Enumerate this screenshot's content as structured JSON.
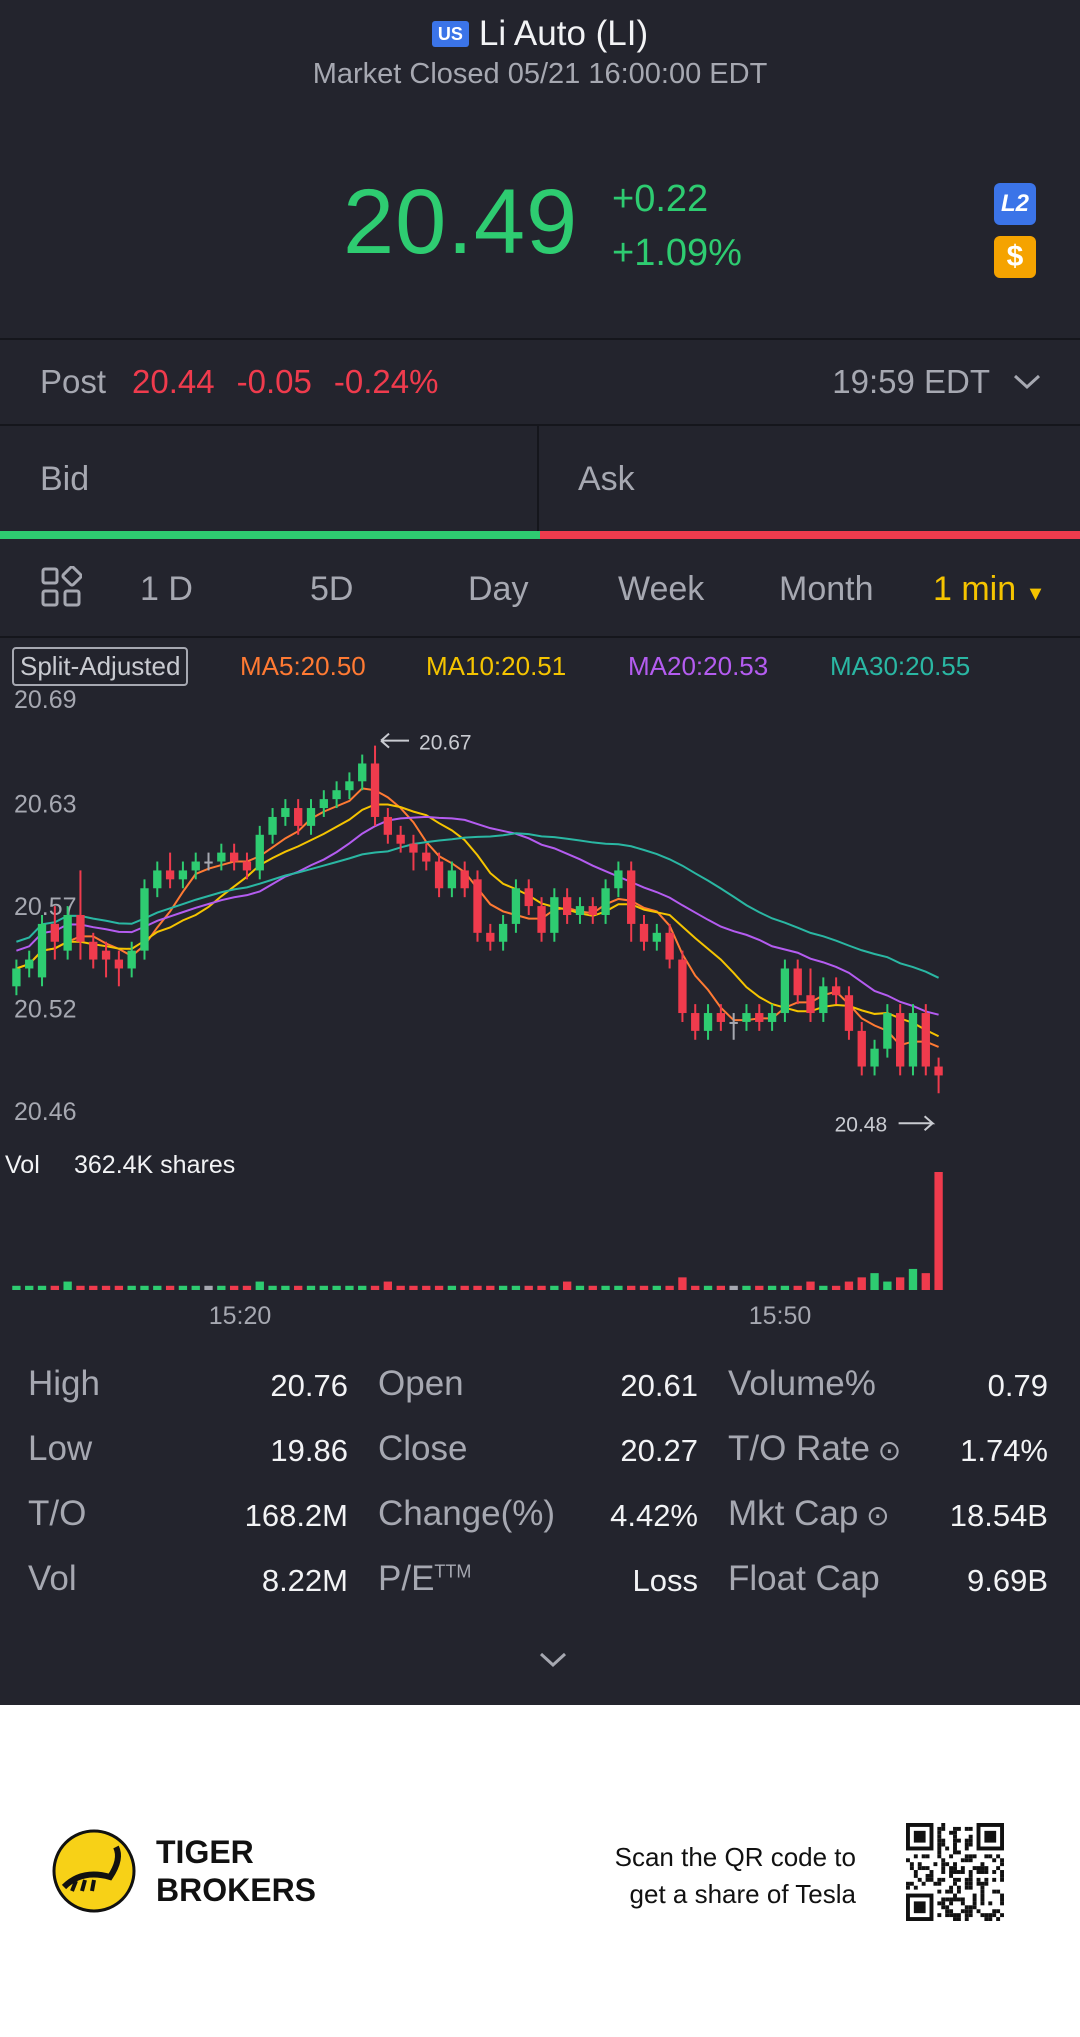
{
  "header": {
    "flag": "US",
    "title": "Li Auto (LI)",
    "subtitle": "Market Closed 05/21 16:00:00 EDT"
  },
  "quote": {
    "price": "20.49",
    "change": "+0.22",
    "change_pct": "+1.09%",
    "badge_l2": "L2",
    "badge_dollar": "$"
  },
  "post": {
    "label": "Post",
    "price": "20.44",
    "change": "-0.05",
    "change_pct": "-0.24%",
    "time": "19:59 EDT"
  },
  "book": {
    "bid": "Bid",
    "ask": "Ask"
  },
  "tabs": [
    {
      "label": "1 D"
    },
    {
      "label": "5D"
    },
    {
      "label": "Day"
    },
    {
      "label": "Week"
    },
    {
      "label": "Month"
    },
    {
      "label": "1 min"
    }
  ],
  "ma": {
    "split": "Split-Adjusted",
    "ma5": "MA5:20.50",
    "ma10": "MA10:20.51",
    "ma20": "MA20:20.53",
    "ma30": "MA30:20.55"
  },
  "colors": {
    "up": "#2ecc71",
    "down": "#ef3b4d",
    "ma5": "#ff7a33",
    "ma10": "#f5c400",
    "ma20": "#b45cf0",
    "ma30": "#2ab7a3"
  },
  "chart_data": {
    "type": "candlestick",
    "ylabels": [
      "20.69",
      "20.63",
      "20.57",
      "20.52",
      "20.46"
    ],
    "ylim": [
      20.46,
      20.69
    ],
    "high_marker": "20.67",
    "low_marker": "20.48",
    "vol_label": "Vol",
    "vol_value": "362.4K shares",
    "xlabels": [
      "15:20",
      "15:50"
    ],
    "candles": [
      [
        20.535,
        20.545,
        20.53,
        20.55
      ],
      [
        20.545,
        20.55,
        20.54,
        20.555
      ],
      [
        20.54,
        20.57,
        20.535,
        20.575
      ],
      [
        20.57,
        20.56,
        20.55,
        20.58
      ],
      [
        20.555,
        20.575,
        20.55,
        20.58
      ],
      [
        20.575,
        20.56,
        20.55,
        20.6
      ],
      [
        20.56,
        20.55,
        20.545,
        20.565
      ],
      [
        20.555,
        20.55,
        20.54,
        20.56
      ],
      [
        20.55,
        20.545,
        20.535,
        20.555
      ],
      [
        20.545,
        20.555,
        20.54,
        20.56
      ],
      [
        20.555,
        20.59,
        20.55,
        20.595
      ],
      [
        20.59,
        20.6,
        20.585,
        20.605
      ],
      [
        20.6,
        20.595,
        20.59,
        20.61
      ],
      [
        20.595,
        20.6,
        20.59,
        20.605
      ],
      [
        20.6,
        20.605,
        20.595,
        20.61
      ],
      [
        20.605,
        20.605,
        20.6,
        20.61
      ],
      [
        20.605,
        20.61,
        20.6,
        20.615
      ],
      [
        20.61,
        20.605,
        20.6,
        20.615
      ],
      [
        20.605,
        20.6,
        20.595,
        20.61
      ],
      [
        20.6,
        20.62,
        20.595,
        20.625
      ],
      [
        20.62,
        20.63,
        20.615,
        20.635
      ],
      [
        20.63,
        20.635,
        20.625,
        20.64
      ],
      [
        20.635,
        20.625,
        20.62,
        20.64
      ],
      [
        20.625,
        20.635,
        20.62,
        20.64
      ],
      [
        20.635,
        20.64,
        20.63,
        20.645
      ],
      [
        20.64,
        20.645,
        20.635,
        20.65
      ],
      [
        20.645,
        20.65,
        20.64,
        20.655
      ],
      [
        20.65,
        20.66,
        20.645,
        20.665
      ],
      [
        20.66,
        20.63,
        20.625,
        20.67
      ],
      [
        20.63,
        20.62,
        20.615,
        20.635
      ],
      [
        20.62,
        20.615,
        20.61,
        20.625
      ],
      [
        20.615,
        20.61,
        20.6,
        20.62
      ],
      [
        20.61,
        20.605,
        20.6,
        20.615
      ],
      [
        20.605,
        20.59,
        20.585,
        20.61
      ],
      [
        20.59,
        20.6,
        20.585,
        20.605
      ],
      [
        20.6,
        20.59,
        20.585,
        20.605
      ],
      [
        20.595,
        20.565,
        20.56,
        20.6
      ],
      [
        20.565,
        20.56,
        20.555,
        20.57
      ],
      [
        20.56,
        20.57,
        20.555,
        20.575
      ],
      [
        20.57,
        20.59,
        20.565,
        20.595
      ],
      [
        20.59,
        20.58,
        20.575,
        20.595
      ],
      [
        20.58,
        20.565,
        20.56,
        20.585
      ],
      [
        20.565,
        20.585,
        20.56,
        20.59
      ],
      [
        20.585,
        20.575,
        20.57,
        20.59
      ],
      [
        20.575,
        20.58,
        20.57,
        20.585
      ],
      [
        20.58,
        20.575,
        20.57,
        20.585
      ],
      [
        20.575,
        20.59,
        20.57,
        20.595
      ],
      [
        20.59,
        20.6,
        20.585,
        20.605
      ],
      [
        20.6,
        20.57,
        20.56,
        20.605
      ],
      [
        20.57,
        20.56,
        20.555,
        20.575
      ],
      [
        20.56,
        20.565,
        20.555,
        20.57
      ],
      [
        20.565,
        20.55,
        20.545,
        20.57
      ],
      [
        20.55,
        20.52,
        20.515,
        20.555
      ],
      [
        20.52,
        20.51,
        20.505,
        20.525
      ],
      [
        20.51,
        20.52,
        20.505,
        20.525
      ],
      [
        20.52,
        20.515,
        20.51,
        20.525
      ],
      [
        20.515,
        20.515,
        20.505,
        20.52
      ],
      [
        20.515,
        20.52,
        20.51,
        20.525
      ],
      [
        20.52,
        20.515,
        20.51,
        20.525
      ],
      [
        20.515,
        20.52,
        20.51,
        20.525
      ],
      [
        20.52,
        20.545,
        20.515,
        20.55
      ],
      [
        20.545,
        20.53,
        20.525,
        20.55
      ],
      [
        20.53,
        20.52,
        20.515,
        20.545
      ],
      [
        20.52,
        20.535,
        20.515,
        20.54
      ],
      [
        20.535,
        20.53,
        20.525,
        20.54
      ],
      [
        20.53,
        20.51,
        20.505,
        20.535
      ],
      [
        20.51,
        20.49,
        20.485,
        20.515
      ],
      [
        20.49,
        20.5,
        20.485,
        20.505
      ],
      [
        20.5,
        20.52,
        20.495,
        20.525
      ],
      [
        20.52,
        20.49,
        20.485,
        20.525
      ],
      [
        20.49,
        20.52,
        20.485,
        20.525
      ],
      [
        20.52,
        20.49,
        20.485,
        20.525
      ],
      [
        20.49,
        20.485,
        20.475,
        20.495
      ]
    ],
    "volumes": [
      1,
      1,
      1,
      1,
      2,
      1,
      1,
      1,
      1,
      1,
      1,
      1,
      1,
      1,
      1,
      1,
      1,
      1,
      1,
      2,
      1,
      1,
      1,
      1,
      1,
      1,
      1,
      1,
      1,
      2,
      1,
      1,
      1,
      1,
      1,
      1,
      1,
      1,
      1,
      1,
      1,
      1,
      1,
      2,
      1,
      1,
      1,
      1,
      1,
      1,
      1,
      1,
      3,
      1,
      1,
      1,
      1,
      1,
      1,
      1,
      1,
      1,
      2,
      1,
      1,
      2,
      3,
      4,
      2,
      3,
      5,
      4,
      28
    ]
  },
  "stats": [
    {
      "label": "High",
      "value": "20.76"
    },
    {
      "label": "Open",
      "value": "20.61"
    },
    {
      "label": "Volume%",
      "value": "0.79"
    },
    {
      "label": "Low",
      "value": "19.86"
    },
    {
      "label": "Close",
      "value": "20.27"
    },
    {
      "label": "T/O Rate",
      "value": "1.74%"
    },
    {
      "label": "T/O",
      "value": "168.2M"
    },
    {
      "label": "Change(%)",
      "value": "4.42%"
    },
    {
      "label": "Mkt Cap",
      "value": "18.54B"
    },
    {
      "label": "Vol",
      "value": "8.22M"
    },
    {
      "label": "P/E",
      "value": "Loss"
    },
    {
      "label": "Float Cap",
      "value": "9.69B"
    }
  ],
  "pe_sup": "TTM",
  "footer": {
    "brand_line1": "TIGER",
    "brand_line2": "BROKERS",
    "promo_line1": "Scan the QR code to",
    "promo_line2": "get a share of Tesla"
  }
}
